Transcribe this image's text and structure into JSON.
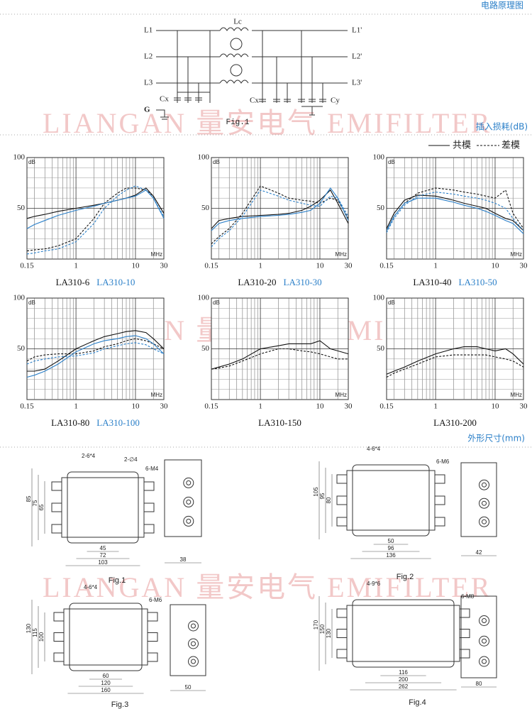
{
  "watermark": "LIANGAN 量安电气 EMIFILTER",
  "circuit": {
    "title": "电路原理图",
    "caption": "Fig.1",
    "lines": [
      "L1",
      "L2",
      "L3",
      "G"
    ],
    "outputs": [
      "L1'",
      "L2'",
      "L3'"
    ],
    "inductor": "Lc",
    "cx_left": "Cx",
    "cx_right": "Cx",
    "cy": "Cy"
  },
  "insertion_loss": {
    "title": "插入损耗(dB)",
    "legend": [
      {
        "label": "共模",
        "style": "solid"
      },
      {
        "label": "差模",
        "style": "dashed"
      }
    ]
  },
  "chart_data": [
    {
      "type": "line",
      "log_x": true,
      "x": [
        0.15,
        0.2,
        0.3,
        0.5,
        1,
        2,
        3,
        5,
        7,
        10,
        15,
        20,
        30
      ],
      "xlim": [
        0.15,
        30
      ],
      "xticks": [
        0.15,
        1,
        10,
        30
      ],
      "xgrid": [
        0.2,
        0.3,
        0.4,
        0.5,
        0.6,
        0.7,
        0.8,
        0.9,
        2,
        3,
        4,
        5,
        6,
        7,
        8,
        9,
        20
      ],
      "ylim": [
        0,
        100
      ],
      "yticks": [
        50,
        100
      ],
      "ygrid": [
        10,
        20,
        30,
        40,
        60,
        70,
        80,
        90
      ],
      "y_unit": "dB",
      "x_unit": "MHz",
      "models": [
        {
          "name": "LA310-6",
          "color": "#111111",
          "common": [
            40,
            42,
            44,
            47,
            50,
            53,
            55,
            58,
            60,
            63,
            70,
            62,
            45
          ],
          "differential": [
            8,
            9,
            10,
            13,
            20,
            40,
            55,
            65,
            70,
            70,
            68,
            62,
            45
          ]
        },
        {
          "name": "LA310-10",
          "color": "#2a7fc8",
          "common": [
            30,
            34,
            38,
            43,
            48,
            52,
            55,
            58,
            60,
            62,
            68,
            60,
            40
          ],
          "differential": [
            5,
            6,
            8,
            10,
            17,
            35,
            50,
            62,
            68,
            72,
            68,
            60,
            42
          ]
        }
      ]
    },
    {
      "type": "line",
      "log_x": true,
      "x": [
        0.15,
        0.2,
        0.3,
        0.5,
        1,
        2,
        3,
        5,
        7,
        10,
        15,
        20,
        30
      ],
      "xlim": [
        0.15,
        30
      ],
      "xticks": [
        0.15,
        1,
        10,
        30
      ],
      "xgrid": [
        0.2,
        0.3,
        0.4,
        0.5,
        0.6,
        0.7,
        0.8,
        0.9,
        2,
        3,
        4,
        5,
        6,
        7,
        8,
        9,
        20
      ],
      "ylim": [
        0,
        100
      ],
      "yticks": [
        50,
        100
      ],
      "ygrid": [
        10,
        20,
        30,
        40,
        60,
        70,
        80,
        90
      ],
      "y_unit": "dB",
      "x_unit": "MHz",
      "models": [
        {
          "name": "LA310-20",
          "color": "#111111",
          "common": [
            30,
            38,
            40,
            42,
            43,
            44,
            45,
            48,
            52,
            58,
            68,
            55,
            35
          ],
          "differential": [
            15,
            22,
            30,
            45,
            72,
            65,
            60,
            58,
            57,
            55,
            60,
            58,
            40
          ]
        },
        {
          "name": "LA310-30",
          "color": "#2a7fc8",
          "common": [
            28,
            35,
            38,
            40,
            42,
            43,
            44,
            46,
            48,
            55,
            70,
            60,
            38
          ],
          "differential": [
            12,
            20,
            28,
            42,
            68,
            62,
            58,
            55,
            53,
            52,
            62,
            60,
            42
          ]
        }
      ]
    },
    {
      "type": "line",
      "log_x": true,
      "x": [
        0.15,
        0.2,
        0.3,
        0.5,
        1,
        2,
        3,
        5,
        7,
        10,
        15,
        20,
        30
      ],
      "xlim": [
        0.15,
        30
      ],
      "xticks": [
        0.15,
        1,
        10,
        30
      ],
      "xgrid": [
        0.2,
        0.3,
        0.4,
        0.5,
        0.6,
        0.7,
        0.8,
        0.9,
        2,
        3,
        4,
        5,
        6,
        7,
        8,
        9,
        20
      ],
      "ylim": [
        0,
        100
      ],
      "yticks": [
        50,
        100
      ],
      "ygrid": [
        10,
        20,
        30,
        40,
        60,
        70,
        80,
        90
      ],
      "y_unit": "dB",
      "x_unit": "MHz",
      "models": [
        {
          "name": "LA310-40",
          "color": "#111111",
          "common": [
            30,
            45,
            58,
            63,
            62,
            58,
            55,
            52,
            50,
            45,
            40,
            38,
            28
          ],
          "differential": [
            28,
            42,
            55,
            65,
            70,
            68,
            66,
            64,
            62,
            60,
            68,
            45,
            30
          ]
        },
        {
          "name": "LA310-50",
          "color": "#2a7fc8",
          "common": [
            28,
            42,
            55,
            60,
            60,
            56,
            53,
            50,
            47,
            43,
            38,
            35,
            25
          ],
          "differential": [
            26,
            40,
            53,
            62,
            66,
            64,
            62,
            60,
            58,
            55,
            50,
            40,
            28
          ]
        }
      ]
    },
    {
      "type": "line",
      "log_x": true,
      "x": [
        0.15,
        0.2,
        0.3,
        0.5,
        1,
        2,
        3,
        5,
        7,
        10,
        15,
        20,
        30
      ],
      "xlim": [
        0.15,
        30
      ],
      "xticks": [
        0.15,
        1,
        10,
        30
      ],
      "xgrid": [
        0.2,
        0.3,
        0.4,
        0.5,
        0.6,
        0.7,
        0.8,
        0.9,
        2,
        3,
        4,
        5,
        6,
        7,
        8,
        9,
        20
      ],
      "ylim": [
        0,
        100
      ],
      "yticks": [
        50,
        100
      ],
      "ygrid": [
        10,
        20,
        30,
        40,
        60,
        70,
        80,
        90
      ],
      "y_unit": "dB",
      "x_unit": "MHz",
      "models": [
        {
          "name": "LA310-80",
          "color": "#111111",
          "common": [
            28,
            28,
            30,
            38,
            50,
            58,
            62,
            65,
            67,
            68,
            66,
            60,
            50
          ],
          "differential": [
            38,
            42,
            44,
            45,
            45,
            48,
            52,
            55,
            58,
            60,
            58,
            55,
            50
          ]
        },
        {
          "name": "LA310-100",
          "color": "#2a7fc8",
          "common": [
            22,
            24,
            28,
            35,
            47,
            55,
            58,
            60,
            62,
            63,
            60,
            55,
            45
          ],
          "differential": [
            35,
            38,
            40,
            42,
            43,
            46,
            50,
            53,
            55,
            56,
            54,
            50,
            45
          ]
        }
      ]
    },
    {
      "type": "line",
      "log_x": true,
      "x": [
        0.15,
        0.2,
        0.3,
        0.5,
        1,
        2,
        3,
        5,
        7,
        10,
        15,
        20,
        30
      ],
      "xlim": [
        0.15,
        30
      ],
      "xticks": [
        0.15,
        1,
        10,
        30
      ],
      "xgrid": [
        0.2,
        0.3,
        0.4,
        0.5,
        0.6,
        0.7,
        0.8,
        0.9,
        2,
        3,
        4,
        5,
        6,
        7,
        8,
        9,
        20
      ],
      "ylim": [
        0,
        100
      ],
      "yticks": [
        50,
        100
      ],
      "ygrid": [
        10,
        20,
        30,
        40,
        60,
        70,
        80,
        90
      ],
      "y_unit": "dB",
      "x_unit": "MHz",
      "models": [
        {
          "name": "LA310-150",
          "color": "#111111",
          "common": [
            30,
            32,
            35,
            40,
            50,
            53,
            55,
            55,
            55,
            58,
            50,
            48,
            45
          ],
          "differential": [
            30,
            31,
            33,
            38,
            45,
            50,
            50,
            48,
            47,
            45,
            42,
            40,
            40
          ]
        }
      ]
    },
    {
      "type": "line",
      "log_x": true,
      "x": [
        0.15,
        0.2,
        0.3,
        0.5,
        1,
        2,
        3,
        5,
        7,
        10,
        15,
        20,
        30
      ],
      "xlim": [
        0.15,
        30
      ],
      "xticks": [
        0.15,
        1,
        10,
        30
      ],
      "xgrid": [
        0.2,
        0.3,
        0.4,
        0.5,
        0.6,
        0.7,
        0.8,
        0.9,
        2,
        3,
        4,
        5,
        6,
        7,
        8,
        9,
        20
      ],
      "ylim": [
        0,
        100
      ],
      "yticks": [
        50,
        100
      ],
      "ygrid": [
        10,
        20,
        30,
        40,
        60,
        70,
        80,
        90
      ],
      "y_unit": "dB",
      "x_unit": "MHz",
      "models": [
        {
          "name": "LA310-200",
          "color": "#111111",
          "common": [
            25,
            28,
            32,
            38,
            45,
            50,
            52,
            52,
            50,
            48,
            50,
            45,
            35
          ],
          "differential": [
            22,
            26,
            30,
            35,
            42,
            44,
            44,
            44,
            44,
            42,
            40,
            38,
            32
          ]
        }
      ]
    }
  ],
  "dimensions": {
    "title": "外形尺寸(mm)",
    "figures": [
      {
        "caption": "Fig.1",
        "holes": [
          "2-6*4",
          "2-∅4"
        ],
        "screw": "6-M4",
        "heights": [
          "85",
          "75",
          "65"
        ],
        "widths": [
          "45",
          "72",
          "103"
        ],
        "depth": "38"
      },
      {
        "caption": "Fig.2",
        "holes": [
          "4-6*4"
        ],
        "screw": "6-M6",
        "heights": [
          "105",
          "95",
          "80"
        ],
        "widths": [
          "50",
          "96",
          "136"
        ],
        "depth": "42"
      },
      {
        "caption": "Fig.3",
        "holes": [
          "4-6*4"
        ],
        "screw": "6-M6",
        "heights": [
          "130",
          "115",
          "100"
        ],
        "widths": [
          "60",
          "120",
          "160"
        ],
        "depth": "50"
      },
      {
        "caption": "Fig.4",
        "holes": [
          "4-9*6"
        ],
        "screw": "6-M8",
        "heights": [
          "170",
          "150",
          "130"
        ],
        "widths": [
          "116",
          "200",
          "262"
        ],
        "depth": "80"
      }
    ]
  }
}
